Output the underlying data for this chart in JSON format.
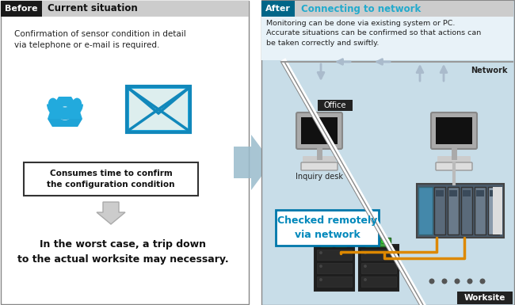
{
  "before_label": "Before",
  "before_title": "Current situation",
  "after_label": "After",
  "after_title": "Connecting to network",
  "before_header_bg": "#1a1a1a",
  "after_header_bg": "#006688",
  "after_title_color": "#22aacc",
  "after_panel_bg": "#c8dde8",
  "before_text1": "Confirmation of sensor condition in detail\nvia telephone or e-mail is required.",
  "box_text": "Consumes time to confirm\nthe configuration condition",
  "bottom_text": "In the worst case, a trip down\nto the actual worksite may necessary.",
  "after_description": "Monitoring can be done via existing system or PC.\nAccurate situations can be confirmed so that actions can\nbe taken correctly and swiftly.",
  "office_label": "Office",
  "inquiry_label": "Inquiry desk",
  "network_label": "Network",
  "worksite_label": "Worksite",
  "checked_text": "Checked remotely\nvia network",
  "bg_color": "#ffffff",
  "tel_color": "#22aadd",
  "mail_color": "#22aadd",
  "mail_border": "#1188bb",
  "orange_cable": "#dd8800",
  "diag_line_color": "#ffffff",
  "diag_bg_upper": "#d8e8f0",
  "arrow_big_color": "#99bbcc"
}
